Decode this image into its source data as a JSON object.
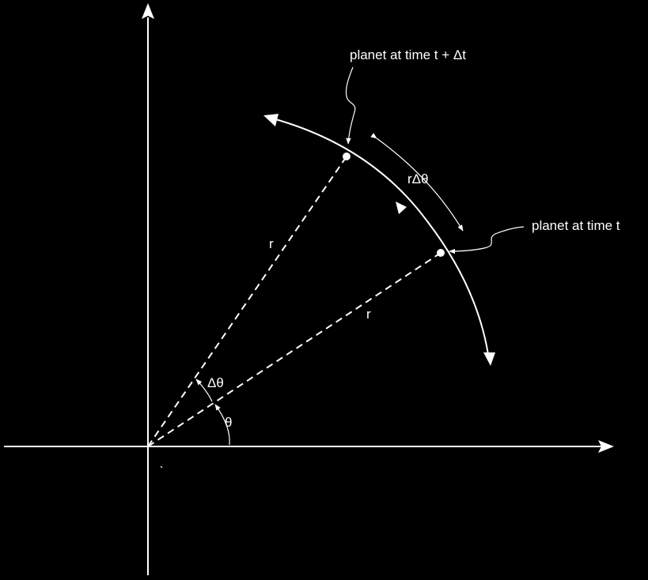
{
  "colors": {
    "background": "#000000",
    "foreground": "#ffffff"
  },
  "labels": {
    "planet_later": "planet at time t + Δt",
    "planet_now": "planet at time t",
    "arc_length": "rΔθ",
    "radius_1": "r",
    "radius_2": "r",
    "delta_theta": "Δθ",
    "theta": "θ"
  },
  "icons": {
    "x_axis_arrow": "arrowhead-right",
    "y_axis_arrow": "arrowhead-up",
    "orbit_arrows": "solid-triangle-arrowheads",
    "pointer_arrows": "wavy-leader-arrow"
  }
}
